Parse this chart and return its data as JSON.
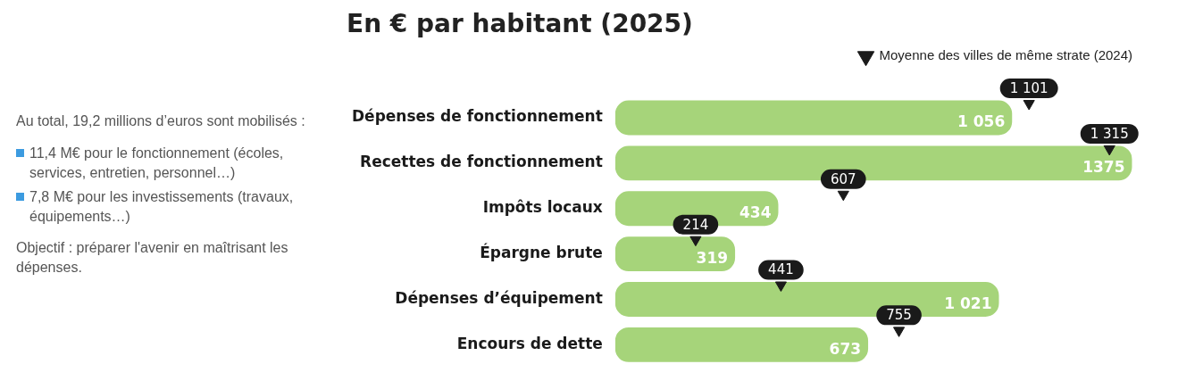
{
  "chart_data": {
    "type": "bar",
    "orientation": "horizontal",
    "title": "En € par habitant (2025)",
    "categories": [
      "Dépenses de fonctionnement",
      "Recettes de fonctionnement",
      "Impôts locaux",
      "Épargne brute",
      "Dépenses d’équipement",
      "Encours de dette"
    ],
    "series": [
      {
        "color": "#a6d47a",
        "values": [
          1056,
          1375,
          434,
          319,
          1021,
          673
        ],
        "value_labels": [
          "1 056",
          "1375",
          "434",
          "319",
          "1 021",
          "673"
        ]
      },
      {
        "type": "scatter",
        "name": "Moyenne des villes de même strate (2024)",
        "color": "#1a1a1a",
        "marker": "triangle",
        "values": [
          1101,
          1315,
          607,
          214,
          441,
          755
        ],
        "value_labels": [
          "1 101",
          "1 315",
          "607",
          "214",
          "441",
          "755"
        ]
      }
    ],
    "tick_labels": "y",
    "grid": false,
    "legend": "top right",
    "annotations": [
      "Au total, 19,2 millions d’euros sont mobilisés :",
      "11,4 M€ pour le fonctionnement (écoles, services, entretien, personnel…)",
      "7,8 M€ pour les investissements (travaux, équipements…)",
      "Objectif : préparer l'avenir en maîtrisant les dépenses."
    ]
  }
}
